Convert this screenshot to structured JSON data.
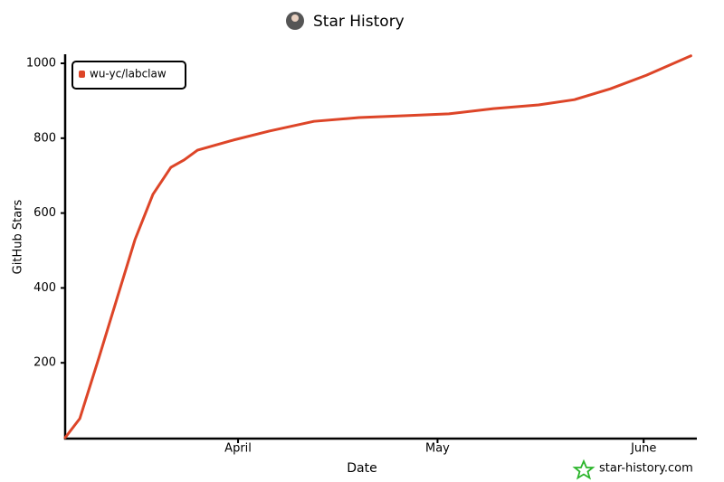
{
  "chart_data": {
    "type": "line",
    "title": "Star History",
    "x_label": "Date",
    "y_label": "GitHub Stars",
    "watermark": "star-history.com",
    "legend": "top-left",
    "xlim": [
      5,
      100
    ],
    "xticks": [
      {
        "value": 31,
        "label": "April"
      },
      {
        "value": 61,
        "label": "May"
      },
      {
        "value": 92,
        "label": "June"
      }
    ],
    "ylim": [
      0,
      1030
    ],
    "yticks": [
      200,
      400,
      600,
      800,
      1000
    ],
    "x": [
      5,
      7.2,
      10.1,
      12.8,
      15.5,
      18.2,
      20.9,
      22.9,
      24.9,
      30.3,
      35.7,
      42.4,
      49.2,
      55.9,
      62.7,
      69.4,
      76.2,
      81.6,
      87.0,
      92.4,
      99.1
    ],
    "series": [
      {
        "name": "wu-yc/labclaw",
        "color": "#dd4528",
        "values": [
          0,
          51,
          215,
          372,
          529,
          650,
          722,
          742,
          768,
          795,
          819,
          845,
          855,
          860,
          865,
          879,
          889,
          903,
          932,
          968,
          1020
        ]
      }
    ]
  }
}
